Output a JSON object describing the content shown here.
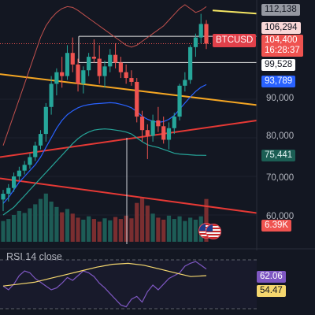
{
  "symbol": "BTCUSD",
  "price_scale": {
    "labels": [
      "90,000",
      "80,000",
      "70,000",
      "60,000"
    ],
    "label_values": [
      90000,
      80000,
      70000,
      60000
    ]
  },
  "tags": {
    "high": "112,138",
    "sr_upper": "106,294",
    "last_price": "104,400",
    "countdown": "16:28:37",
    "sr_lower": "99,528",
    "ma_blue": "93,789",
    "ma_green": "75,441",
    "volume": "6.39K",
    "rsi": "62.06",
    "rsi_ma": "54.47"
  },
  "colors": {
    "background": "#131722",
    "up": "#26a69a",
    "down": "#ef5350",
    "ma_blue": "#2962ff",
    "ma_green": "#26a69a",
    "trend_orange": "#f5a623",
    "trend_red": "#e53935",
    "trend_yellow": "#f5e663",
    "rsi_line": "#7e57c2",
    "rsi_ma": "#f5d76e"
  },
  "rsi": {
    "title": "RSI 14 close",
    "values": [
      44,
      40,
      46,
      55,
      60,
      58,
      52,
      48,
      44,
      40,
      42,
      47,
      53,
      50,
      55,
      60,
      58,
      54,
      47,
      42,
      36,
      30,
      24,
      22,
      30,
      33,
      27,
      38,
      45,
      40,
      46,
      52,
      55,
      58,
      65,
      68,
      70,
      66,
      62
    ],
    "ma_values": [
      44,
      46,
      48,
      52,
      56,
      60,
      64,
      67,
      68,
      66,
      62,
      58,
      54,
      55
    ]
  },
  "chart_data": {
    "type": "candlestick",
    "symbol": "BTCUSD",
    "candles": [
      {
        "o": 64000,
        "h": 66500,
        "l": 61000,
        "c": 65500
      },
      {
        "o": 65500,
        "h": 68000,
        "l": 63500,
        "c": 67000
      },
      {
        "o": 67000,
        "h": 71000,
        "l": 66000,
        "c": 70000
      },
      {
        "o": 70000,
        "h": 72500,
        "l": 69000,
        "c": 71500
      },
      {
        "o": 71500,
        "h": 74000,
        "l": 70500,
        "c": 73000
      },
      {
        "o": 73000,
        "h": 76000,
        "l": 72000,
        "c": 75000
      },
      {
        "o": 75000,
        "h": 79000,
        "l": 74000,
        "c": 78000
      },
      {
        "o": 78000,
        "h": 82000,
        "l": 77000,
        "c": 81000
      },
      {
        "o": 81000,
        "h": 89000,
        "l": 79000,
        "c": 88000
      },
      {
        "o": 88000,
        "h": 96000,
        "l": 86000,
        "c": 94000
      },
      {
        "o": 94000,
        "h": 98000,
        "l": 91000,
        "c": 97000
      },
      {
        "o": 97000,
        "h": 101000,
        "l": 93000,
        "c": 96000
      },
      {
        "o": 96000,
        "h": 104000,
        "l": 95000,
        "c": 102000
      },
      {
        "o": 102000,
        "h": 106000,
        "l": 97000,
        "c": 99000
      },
      {
        "o": 99000,
        "h": 100500,
        "l": 92000,
        "c": 94000
      },
      {
        "o": 94000,
        "h": 98500,
        "l": 91500,
        "c": 97500
      },
      {
        "o": 97500,
        "h": 102000,
        "l": 96000,
        "c": 101000
      },
      {
        "o": 101000,
        "h": 105500,
        "l": 99500,
        "c": 100500
      },
      {
        "o": 100500,
        "h": 104000,
        "l": 94000,
        "c": 96000
      },
      {
        "o": 96000,
        "h": 100000,
        "l": 93000,
        "c": 98500
      },
      {
        "o": 98500,
        "h": 103000,
        "l": 97000,
        "c": 101500
      },
      {
        "o": 101500,
        "h": 104500,
        "l": 98000,
        "c": 99500
      },
      {
        "o": 99500,
        "h": 101000,
        "l": 95500,
        "c": 97000
      },
      {
        "o": 97000,
        "h": 99000,
        "l": 94000,
        "c": 95500
      },
      {
        "o": 95500,
        "h": 97500,
        "l": 93500,
        "c": 94500
      },
      {
        "o": 94500,
        "h": 95500,
        "l": 84000,
        "c": 85500
      },
      {
        "o": 85500,
        "h": 87000,
        "l": 79000,
        "c": 82000
      },
      {
        "o": 82000,
        "h": 83500,
        "l": 74500,
        "c": 80500
      },
      {
        "o": 80500,
        "h": 86000,
        "l": 79000,
        "c": 84500
      },
      {
        "o": 84500,
        "h": 88000,
        "l": 81500,
        "c": 83000
      },
      {
        "o": 83000,
        "h": 85500,
        "l": 78500,
        "c": 79500
      },
      {
        "o": 79500,
        "h": 84000,
        "l": 77000,
        "c": 82500
      },
      {
        "o": 82500,
        "h": 86500,
        "l": 81000,
        "c": 85500
      },
      {
        "o": 85500,
        "h": 94000,
        "l": 84500,
        "c": 93500
      },
      {
        "o": 93500,
        "h": 97000,
        "l": 92000,
        "c": 95000
      },
      {
        "o": 95000,
        "h": 104000,
        "l": 94000,
        "c": 103500
      },
      {
        "o": 103500,
        "h": 107000,
        "l": 101000,
        "c": 106000
      },
      {
        "o": 106000,
        "h": 112138,
        "l": 104500,
        "c": 109500
      },
      {
        "o": 109500,
        "h": 110500,
        "l": 103000,
        "c": 104400
      }
    ],
    "volumes": [
      3.1,
      3.4,
      4.0,
      4.6,
      4.3,
      5.0,
      5.6,
      6.4,
      7.2,
      6.0,
      5.2,
      4.4,
      4.9,
      4.2,
      3.6,
      3.3,
      3.8,
      3.4,
      3.0,
      3.5,
      3.2,
      3.7,
      3.4,
      3.9,
      3.5,
      5.8,
      6.6,
      5.4,
      4.2,
      3.6,
      3.3,
      3.9,
      3.4,
      3.8,
      3.1,
      3.6,
      3.3,
      3.8,
      6.39
    ],
    "ma_blue": [
      63000,
      64500,
      66500,
      68500,
      70000,
      71500,
      73000,
      75000,
      77500,
      80000,
      82500,
      84500,
      86000,
      87000,
      87800,
      88300,
      88600,
      88800,
      88900,
      89000,
      89100,
      89000,
      88700,
      88300,
      87800,
      86800,
      85600,
      84800,
      84300,
      84000,
      84200,
      84800,
      85800,
      87400,
      89000,
      90600,
      92000,
      93100,
      93789
    ],
    "ma_green": [
      60000,
      61000,
      62000,
      63500,
      65000,
      66500,
      68000,
      69500,
      71000,
      72500,
      74000,
      75500,
      77000,
      78500,
      79800,
      80800,
      81500,
      82000,
      82200,
      82300,
      82200,
      82000,
      81800,
      81500,
      81000,
      80000,
      79000,
      78200,
      77800,
      77500,
      77000,
      76500,
      76000,
      75800,
      75700,
      75600,
      75500,
      75460,
      75441
    ],
    "upper_band": [
      78000,
      82000,
      86000,
      90000,
      94000,
      98000,
      102000,
      106000,
      109000,
      111000,
      112500,
      113500,
      114000,
      113800,
      113000,
      112000,
      111000,
      110000,
      109000,
      108000,
      107000,
      106000,
      105000,
      104000,
      103500,
      104000,
      105000,
      106000,
      107000,
      108000,
      109000,
      110500,
      112000,
      113500,
      114500,
      113500,
      112500,
      113000,
      114000
    ],
    "horizontal_levels": [
      112138,
      106294,
      104400,
      99528
    ],
    "trendlines": [
      {
        "name": "orange",
        "from": [
          0,
          96500
        ],
        "to": [
          326,
          88500
        ]
      },
      {
        "name": "red-upper",
        "from": [
          0,
          75000
        ],
        "to": [
          326,
          84500
        ]
      },
      {
        "name": "red-lower",
        "from": [
          0,
          69500
        ],
        "to": [
          326,
          60500
        ]
      },
      {
        "name": "yellow",
        "from": [
          270,
          113000
        ],
        "to": [
          326,
          112200
        ]
      }
    ],
    "y_axis_ticks": [
      90000,
      80000,
      70000,
      60000
    ]
  }
}
